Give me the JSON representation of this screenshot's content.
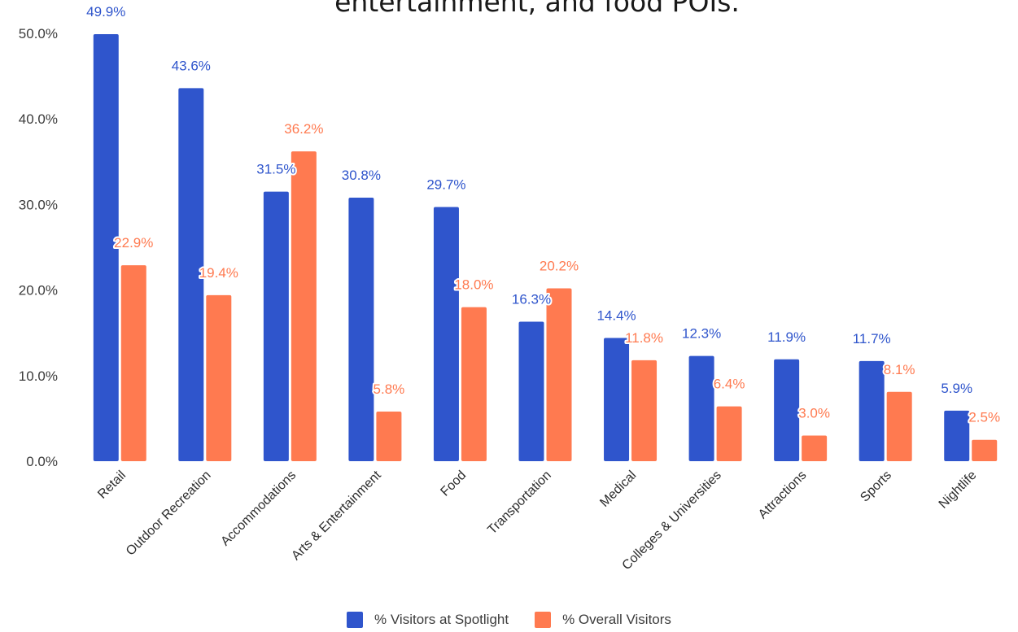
{
  "chart_data": {
    "type": "bar",
    "title": "entertainment, and food POIs.",
    "xlabel": "",
    "ylabel": "",
    "ylim": [
      0,
      50
    ],
    "yticks": [
      "0.0%",
      "10.0%",
      "20.0%",
      "30.0%",
      "40.0%",
      "50.0%"
    ],
    "grid": false,
    "legend_position": "bottom",
    "categories": [
      "Retail",
      "Outdoor Recreation",
      "Accommodations",
      "Arts & Entertainment",
      "Food",
      "Transportation",
      "Medical",
      "Colleges & Universities",
      "Attractions",
      "Sports",
      "Nightlife"
    ],
    "series": [
      {
        "name": "% Visitors at Spotlight",
        "color": "#2f55cc",
        "label_color": "#2f55cc",
        "values": [
          49.9,
          43.6,
          31.5,
          30.8,
          29.7,
          16.3,
          14.4,
          12.3,
          11.9,
          11.7,
          5.9
        ],
        "labels": [
          "49.9%",
          "43.6%",
          "31.5%",
          "30.8%",
          "29.7%",
          "16.3%",
          "14.4%",
          "12.3%",
          "11.9%",
          "11.7%",
          "5.9%"
        ]
      },
      {
        "name": "% Overall Visitors",
        "color": "#ff7a50",
        "label_color": "#ff7a50",
        "values": [
          22.9,
          19.4,
          36.2,
          5.8,
          18.0,
          20.2,
          11.8,
          6.4,
          3.0,
          8.1,
          2.5
        ],
        "labels": [
          "22.9%",
          "19.4%",
          "36.2%",
          "5.8%",
          "18.0%",
          "20.2%",
          "11.8%",
          "6.4%",
          "3.0%",
          "8.1%",
          "2.5%"
        ]
      }
    ]
  }
}
